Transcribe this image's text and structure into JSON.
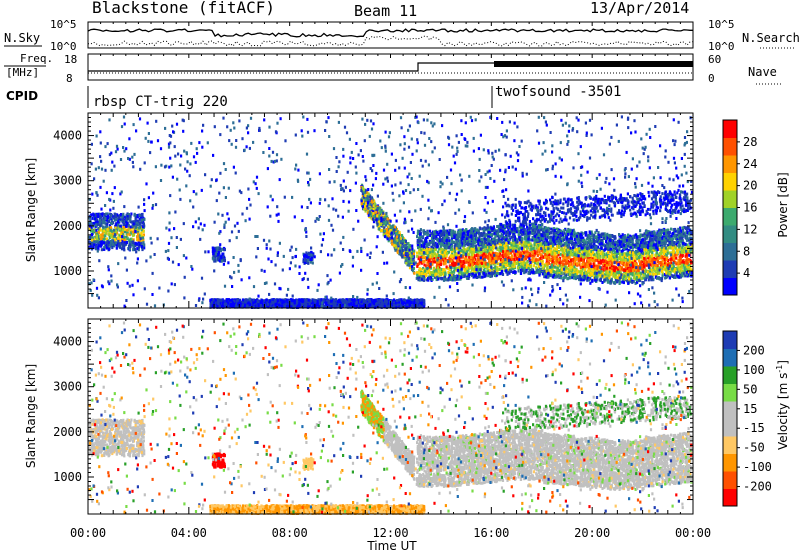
{
  "header": {
    "station": "Blackstone (fitACF)",
    "beam": "Beam 11",
    "date": "13/Apr/2014"
  },
  "top_panels": {
    "nsky_label": "N.Sky",
    "nsearch_label": "N.Search",
    "nsky_ticks": [
      "10^5",
      "10^0"
    ],
    "freq_label_1": "Freq.",
    "freq_label_2": "[MHz]",
    "freq_ticks": [
      "18",
      "8"
    ],
    "nave_label": "Nave",
    "nave_ticks": [
      "60",
      "0"
    ],
    "cpid_label": "CPID",
    "cpid_1": "rbsp CT-trig 220",
    "cpid_2": "twofsound -3501"
  },
  "colors": {
    "power_scale": [
      "#0000ff",
      "#1e3cb4",
      "#2d6e96",
      "#328c82",
      "#3caa6e",
      "#a0d228",
      "#ffd200",
      "#ff9600",
      "#ff5000",
      "#ff0000"
    ],
    "velocity_scale": [
      "#ff0000",
      "#ff5000",
      "#ff9600",
      "#ffc864",
      "#c0c0c0",
      "#c0c0c0",
      "#78dc46",
      "#28a028",
      "#1e6eb4",
      "#1e3cb4"
    ]
  },
  "chart_data": [
    {
      "type": "heatmap",
      "name": "power",
      "xlabel": "Time UT",
      "ylabel": "Slant Range [km]",
      "x_ticks": [
        "00:00",
        "04:00",
        "08:00",
        "12:00",
        "16:00",
        "20:00",
        "00:00"
      ],
      "x_range_hours": [
        0,
        24
      ],
      "y_range_km": [
        180,
        4500
      ],
      "y_ticks": [
        1000,
        2000,
        3000,
        4000
      ],
      "colorbar_label": "Power [dB]",
      "colorbar_ticks": [
        "28",
        "24",
        "20",
        "16",
        "12",
        "8",
        "4"
      ],
      "colorbar_range": [
        0,
        30
      ]
    },
    {
      "type": "heatmap",
      "name": "velocity",
      "xlabel": "Time UT",
      "ylabel": "Slant Range [km]",
      "x_ticks": [
        "00:00",
        "04:00",
        "08:00",
        "12:00",
        "16:00",
        "20:00",
        "00:00"
      ],
      "x_range_hours": [
        0,
        24
      ],
      "y_range_km": [
        180,
        4500
      ],
      "y_ticks": [
        1000,
        2000,
        3000,
        4000
      ],
      "colorbar_label": "Velocity [m s",
      "colorbar_unit_sup": "-1",
      "colorbar_unit_end": "]",
      "colorbar_ticks": [
        "200",
        "100",
        "50",
        "15",
        "-15",
        "-50",
        "-100",
        "-200"
      ]
    }
  ]
}
